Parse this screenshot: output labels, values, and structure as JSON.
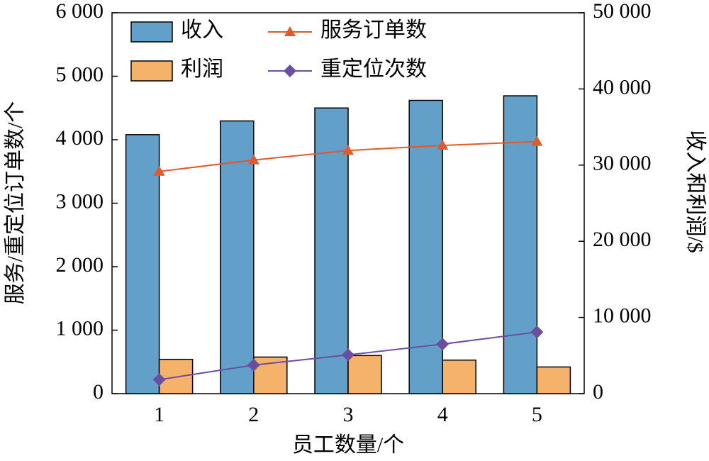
{
  "chart_data": {
    "type": "bar",
    "x_label": "员工数量/个",
    "y_label": "服务/重定位订单数/个",
    "y2_label": "收入和利润/$",
    "categories": [
      "1",
      "2",
      "3",
      "4",
      "5"
    ],
    "series": [
      {
        "name": "收入",
        "type": "bar",
        "axis": "y2",
        "color": "#62a0c9",
        "values": [
          34000,
          35800,
          37500,
          38500,
          39100
        ]
      },
      {
        "name": "利润",
        "type": "bar",
        "axis": "y2",
        "color": "#f5b26b",
        "values": [
          4500,
          4800,
          5000,
          4400,
          3500
        ]
      },
      {
        "name": "服务订单数",
        "type": "line",
        "marker": "triangle",
        "color": "#e05a2b",
        "values": [
          3500,
          3680,
          3830,
          3910,
          3970
        ]
      },
      {
        "name": "重定位次数",
        "type": "line",
        "marker": "diamond",
        "color": "#6a4ea0",
        "values": [
          220,
          450,
          610,
          780,
          970
        ]
      }
    ],
    "ylim": [
      0,
      6000
    ],
    "yticks": [
      0,
      {
        "value": 1000,
        "label": "1 000"
      },
      {
        "value": 2000,
        "label": "2 000"
      },
      {
        "value": 3000,
        "label": "3 000"
      },
      {
        "value": 4000,
        "label": "4 000"
      },
      {
        "value": 5000,
        "label": "5 000"
      },
      {
        "value": 6000,
        "label": "6 000"
      }
    ],
    "y2lim": [
      0,
      50000
    ],
    "y2ticks": [
      0,
      {
        "value": 10000,
        "label": "10 000"
      },
      {
        "value": 20000,
        "label": "20 000"
      },
      {
        "value": 30000,
        "label": "30 000"
      },
      {
        "value": 40000,
        "label": "40 000"
      },
      {
        "value": 50000,
        "label": "50 000"
      }
    ],
    "legend": "upper-left"
  }
}
